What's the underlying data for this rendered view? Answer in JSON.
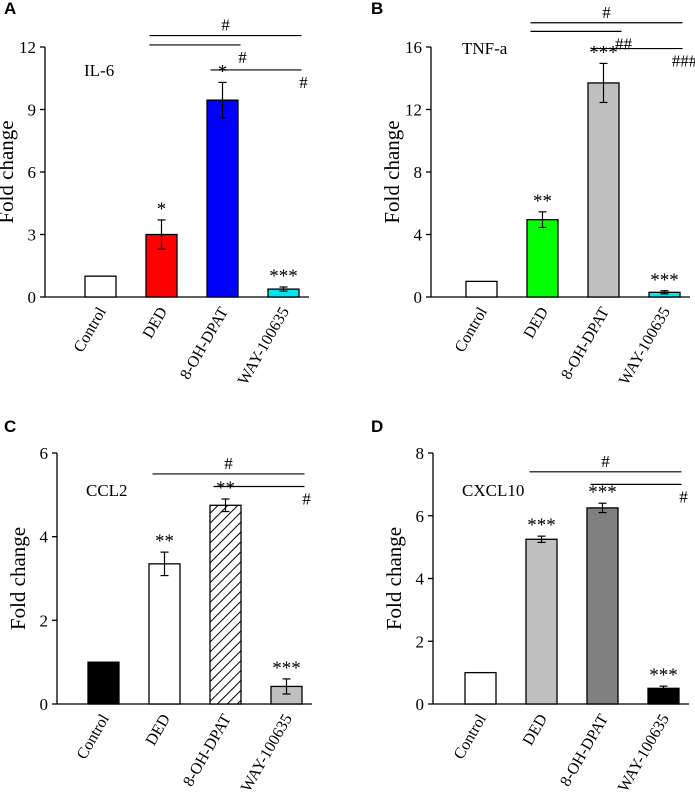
{
  "figure": {
    "panel_letters": [
      "A",
      "B",
      "C",
      "D"
    ],
    "hatch_color": "#000000"
  },
  "chart_data": [
    {
      "panel": "A",
      "type": "bar",
      "title": "IL-6",
      "ylabel": "Fold change",
      "xlabel": "",
      "ylim": [
        0,
        12
      ],
      "yticks": [
        0,
        3,
        6,
        9,
        12
      ],
      "categories": [
        "Control",
        "DED",
        "8-OH-DPAT",
        "WAY-100635"
      ],
      "values": [
        1.0,
        3.0,
        9.45,
        0.38
      ],
      "errors": [
        0,
        0.7,
        0.85,
        0.1
      ],
      "fills": [
        "#ffffff",
        "#ff0000",
        "#0000ff",
        "#00e5ee"
      ],
      "significance": [
        "",
        "*",
        "*",
        "***"
      ],
      "brackets": [
        {
          "from": 1,
          "to": 3,
          "value": 12.55,
          "label": "#",
          "label_pos": "above"
        },
        {
          "from": 1,
          "to": 2,
          "value": 12.1,
          "label": "#",
          "label_pos": "below"
        },
        {
          "from": 2,
          "to": 3,
          "value": 10.9,
          "label": "#",
          "label_pos": "below"
        }
      ]
    },
    {
      "panel": "B",
      "type": "bar",
      "title": "TNF-a",
      "ylabel": "Fold change",
      "xlabel": "",
      "ylim": [
        0,
        16
      ],
      "yticks": [
        0,
        4,
        8,
        12,
        16
      ],
      "categories": [
        "Control",
        "DED",
        "8-OH-DPAT",
        "WAY-100635"
      ],
      "values": [
        1.0,
        4.95,
        13.7,
        0.3
      ],
      "errors": [
        0,
        0.5,
        1.25,
        0.1
      ],
      "fills": [
        "#ffffff",
        "#00ff00",
        "#c0c0c0",
        "#00e5ee"
      ],
      "significance": [
        "",
        "**",
        "***",
        "***"
      ],
      "brackets": [
        {
          "from": 1,
          "to": 3,
          "value": 17.55,
          "label": "#",
          "label_pos": "above"
        },
        {
          "from": 1,
          "to": 2,
          "value": 17.0,
          "label": "##",
          "label_pos": "below"
        },
        {
          "from": 2,
          "to": 3,
          "value": 15.9,
          "label": "###",
          "label_pos": "below"
        }
      ]
    },
    {
      "panel": "C",
      "type": "bar",
      "title": "CCL2",
      "ylabel": "Fold change",
      "xlabel": "",
      "ylim": [
        0,
        6
      ],
      "yticks": [
        0,
        2,
        4,
        6
      ],
      "categories": [
        "Control",
        "DED",
        "8-OH-DPAT",
        "WAY-100635"
      ],
      "values": [
        1.0,
        3.35,
        4.75,
        0.42
      ],
      "errors": [
        0,
        0.28,
        0.15,
        0.18
      ],
      "fills": [
        "#000000",
        "#ffffff",
        "hatch",
        "#c0c0c0"
      ],
      "significance": [
        "",
        "**",
        "**",
        "***"
      ],
      "brackets": [
        {
          "from": 1,
          "to": 3,
          "value": 5.5,
          "label": "#",
          "label_pos": "above"
        },
        {
          "from": 2,
          "to": 3,
          "value": 5.2,
          "label": "#",
          "label_pos": "below"
        }
      ]
    },
    {
      "panel": "D",
      "type": "bar",
      "title": "CXCL10",
      "ylabel": "Fold change",
      "xlabel": "",
      "ylim": [
        0,
        8
      ],
      "yticks": [
        0,
        2,
        4,
        6,
        8
      ],
      "categories": [
        "Control",
        "DED",
        "8-OH-DPAT",
        "WAY-100635"
      ],
      "values": [
        1.0,
        5.25,
        6.25,
        0.5
      ],
      "errors": [
        0,
        0.1,
        0.15,
        0.07
      ],
      "fills": [
        "#ffffff",
        "#c0c0c0",
        "#808080",
        "#000000"
      ],
      "significance": [
        "",
        "***",
        "***",
        "***"
      ],
      "brackets": [
        {
          "from": 1,
          "to": 3,
          "value": 7.4,
          "label": "#",
          "label_pos": "above"
        },
        {
          "from": 2,
          "to": 3,
          "value": 7.0,
          "label": "#",
          "label_pos": "below"
        }
      ]
    }
  ]
}
